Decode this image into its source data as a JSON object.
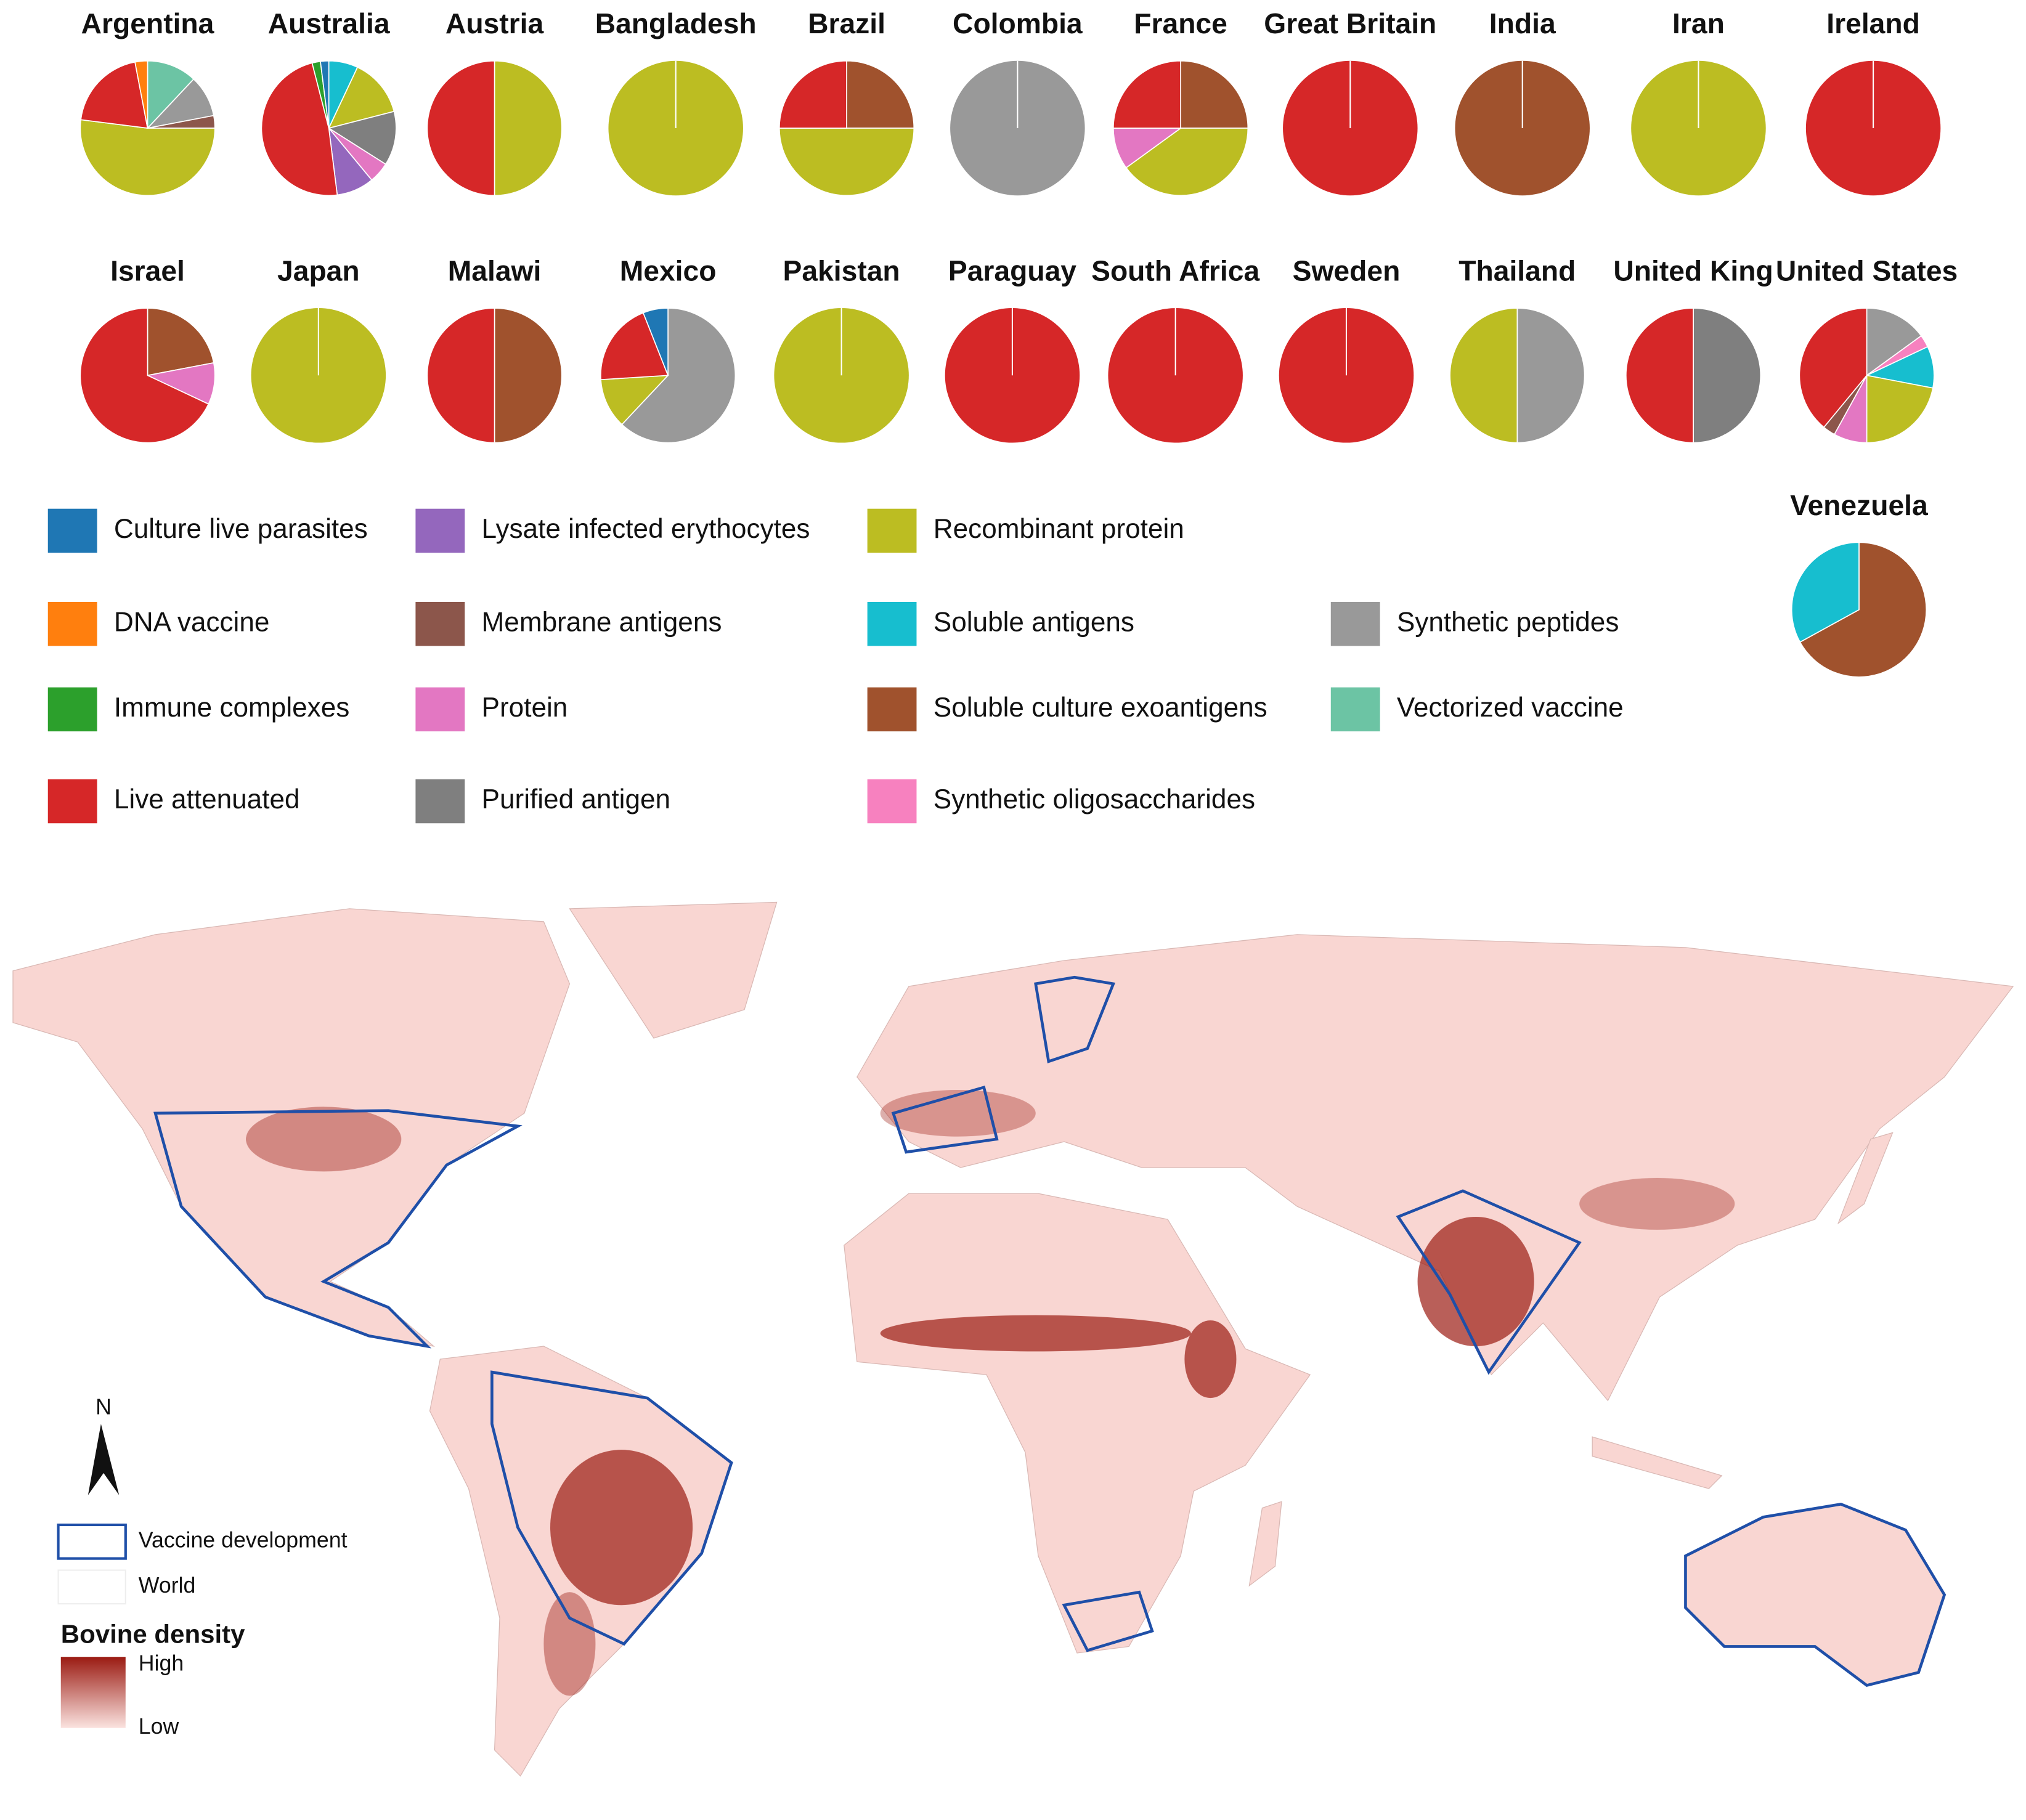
{
  "chart_data": [
    {
      "type": "pie",
      "title": "Argentina",
      "categories": [
        "Vectorized vaccine",
        "Synthetic peptides",
        "Membrane antigens",
        "Recombinant protein",
        "Live attenuated",
        "DNA vaccine"
      ],
      "values": [
        12,
        10,
        3,
        52,
        20,
        3
      ]
    },
    {
      "type": "pie",
      "title": "Australia",
      "categories": [
        "Soluble antigens",
        "Recombinant protein",
        "Purified antigen",
        "Protein",
        "Lysate infected erythocytes",
        "Live attenuated",
        "Immune complexes",
        "Culture live parasites"
      ],
      "values": [
        7,
        14,
        13,
        5,
        9,
        48,
        2,
        2
      ]
    },
    {
      "type": "pie",
      "title": "Austria",
      "categories": [
        "Recombinant protein",
        "Live attenuated"
      ],
      "values": [
        50,
        50
      ]
    },
    {
      "type": "pie",
      "title": "Bangladesh",
      "categories": [
        "Recombinant protein"
      ],
      "values": [
        100
      ]
    },
    {
      "type": "pie",
      "title": "Brazil",
      "categories": [
        "Soluble culture exoantigens",
        "Recombinant protein",
        "Live attenuated"
      ],
      "values": [
        25,
        50,
        25
      ]
    },
    {
      "type": "pie",
      "title": "Colombia",
      "categories": [
        "Synthetic peptides"
      ],
      "values": [
        100
      ]
    },
    {
      "type": "pie",
      "title": "France",
      "categories": [
        "Soluble culture exoantigens",
        "Recombinant protein",
        "Protein",
        "Live attenuated"
      ],
      "values": [
        25,
        40,
        10,
        25
      ]
    },
    {
      "type": "pie",
      "title": "Great Britain",
      "categories": [
        "Live attenuated"
      ],
      "values": [
        100
      ]
    },
    {
      "type": "pie",
      "title": "India",
      "categories": [
        "Soluble culture exoantigens"
      ],
      "values": [
        100
      ]
    },
    {
      "type": "pie",
      "title": "Iran",
      "categories": [
        "Recombinant protein"
      ],
      "values": [
        100
      ]
    },
    {
      "type": "pie",
      "title": "Ireland",
      "categories": [
        "Live attenuated"
      ],
      "values": [
        100
      ]
    },
    {
      "type": "pie",
      "title": "Israel",
      "categories": [
        "Soluble culture exoantigens",
        "Protein",
        "Live attenuated"
      ],
      "values": [
        22,
        10,
        68
      ]
    },
    {
      "type": "pie",
      "title": "Japan",
      "categories": [
        "Recombinant protein"
      ],
      "values": [
        100
      ]
    },
    {
      "type": "pie",
      "title": "Malawi",
      "categories": [
        "Soluble culture exoantigens",
        "Live attenuated"
      ],
      "values": [
        50,
        50
      ]
    },
    {
      "type": "pie",
      "title": "Mexico",
      "categories": [
        "Synthetic peptides",
        "Recombinant protein",
        "Live attenuated",
        "Culture live parasites"
      ],
      "values": [
        62,
        12,
        20,
        6
      ]
    },
    {
      "type": "pie",
      "title": "Pakistan",
      "categories": [
        "Recombinant protein"
      ],
      "values": [
        100
      ]
    },
    {
      "type": "pie",
      "title": "Paraguay",
      "categories": [
        "Live attenuated"
      ],
      "values": [
        100
      ]
    },
    {
      "type": "pie",
      "title": "South Africa",
      "categories": [
        "Live attenuated"
      ],
      "values": [
        100
      ]
    },
    {
      "type": "pie",
      "title": "Sweden",
      "categories": [
        "Live attenuated"
      ],
      "values": [
        100
      ]
    },
    {
      "type": "pie",
      "title": "Thailand",
      "categories": [
        "Synthetic peptides",
        "Recombinant protein"
      ],
      "values": [
        50,
        50
      ]
    },
    {
      "type": "pie",
      "title": "United King",
      "categories": [
        "Purified antigen",
        "Live attenuated"
      ],
      "values": [
        50,
        50
      ]
    },
    {
      "type": "pie",
      "title": "United States",
      "categories": [
        "Synthetic peptides",
        "Synthetic oligosaccharides",
        "Soluble antigens",
        "Recombinant protein",
        "Protein",
        "Membrane antigens",
        "Live attenuated"
      ],
      "values": [
        15,
        3,
        10,
        22,
        8,
        3,
        39
      ]
    },
    {
      "type": "pie",
      "title": "Venezuela",
      "categories": [
        "Soluble culture exoantigens",
        "Soluble antigens"
      ],
      "values": [
        67,
        33
      ]
    }
  ],
  "legend": [
    {
      "name": "Culture live parasites",
      "color": "#1f77b4"
    },
    {
      "name": "DNA vaccine",
      "color": "#ff7f0e"
    },
    {
      "name": "Immune complexes",
      "color": "#2ca02c"
    },
    {
      "name": "Live attenuated",
      "color": "#d62728"
    },
    {
      "name": "Lysate infected erythocytes",
      "color": "#9467bd"
    },
    {
      "name": "Membrane antigens",
      "color": "#8c564b"
    },
    {
      "name": "Protein",
      "color": "#e377c2"
    },
    {
      "name": "Purified antigen",
      "color": "#7f7f7f"
    },
    {
      "name": "Recombinant protein",
      "color": "#bcbd22"
    },
    {
      "name": "Soluble antigens",
      "color": "#17becf"
    },
    {
      "name": "Soluble culture exoantigens",
      "color": "#a0522d"
    },
    {
      "name": "Synthetic oligosaccharides",
      "color": "#f781bf"
    },
    {
      "name": "Synthetic peptides",
      "color": "#999999"
    },
    {
      "name": "Vectorized vaccine",
      "color": "#6cc4a4"
    }
  ],
  "map": {
    "north": "N",
    "vaccine_development": "Vaccine development",
    "world": "World",
    "density_title": "Bovine density",
    "high": "High",
    "low": "Low"
  }
}
